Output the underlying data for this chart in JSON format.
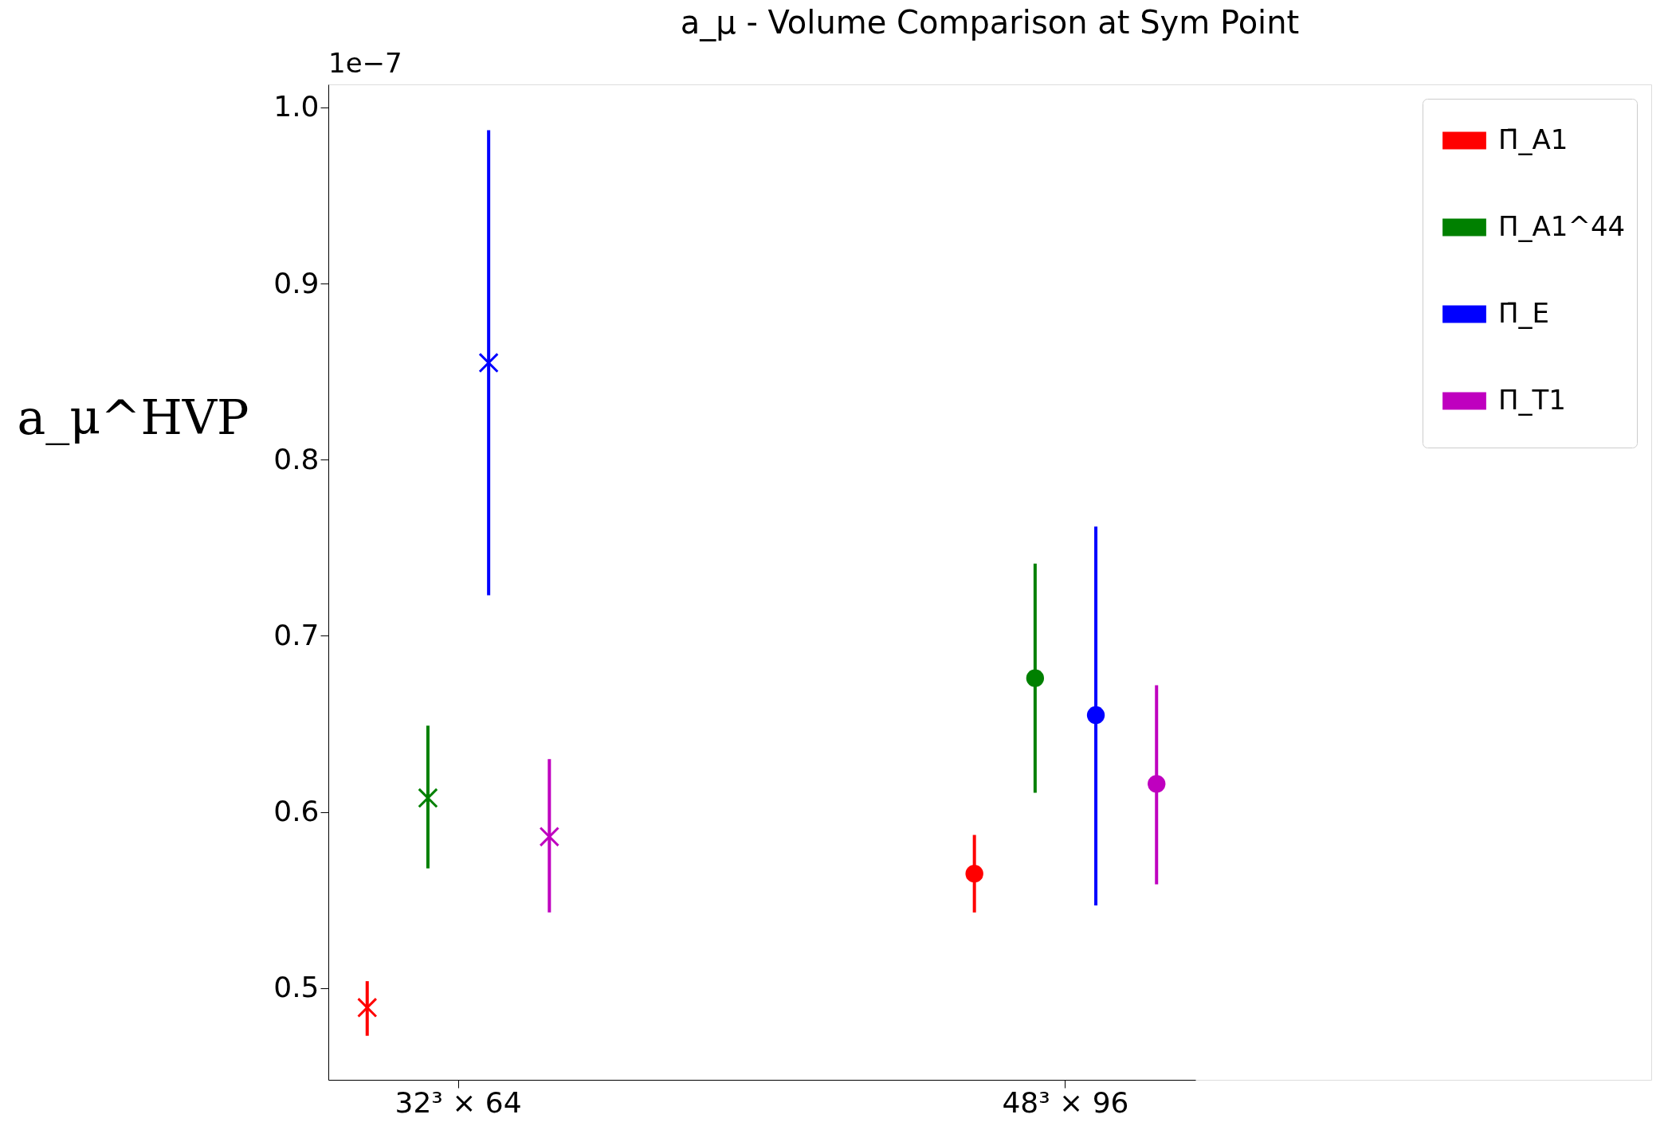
{
  "chart_data": {
    "type": "scatter",
    "title": "a_μ - Volume Comparison at Sym Point",
    "ylabel": "a_μ^HVP",
    "annotations": [
      "1e−7"
    ],
    "categories": [
      "32³ × 64",
      "48³ × 96"
    ],
    "ylim": [
      0.448,
      1.013
    ],
    "yticks": [
      {
        "value": 0.5,
        "label": "0.5"
      },
      {
        "value": 0.6,
        "label": "0.6"
      },
      {
        "value": 0.7,
        "label": "0.7"
      },
      {
        "value": 0.8,
        "label": "0.8"
      },
      {
        "value": 0.9,
        "label": "0.9"
      },
      {
        "value": 1.0,
        "label": "1.0"
      }
    ],
    "grid": false,
    "legend": "top right",
    "series": [
      {
        "name": "Π̄_A1",
        "color": "#ff0000",
        "marker": "cross",
        "x": [
          "32³ × 64"
        ],
        "values": [
          0.489
        ],
        "errors": [
          [
            0.473,
            0.504
          ]
        ]
      },
      {
        "name": "Π_A1^44",
        "color": "#008000",
        "marker": "cross",
        "x": [
          "32³ × 64"
        ],
        "values": [
          0.608
        ],
        "errors": [
          [
            0.568,
            0.649
          ]
        ]
      },
      {
        "name": "Π̄_E",
        "color": "#0000ff",
        "marker": "cross",
        "x": [
          "32³ × 64"
        ],
        "values": [
          0.855
        ],
        "errors": [
          [
            0.723,
            0.987
          ]
        ]
      },
      {
        "name": "Π_T1",
        "color": "#bf00bf",
        "marker": "cross",
        "x": [
          "32³ × 64"
        ],
        "values": [
          0.586
        ],
        "errors": [
          [
            0.543,
            0.63
          ]
        ]
      },
      {
        "color": "#ff0000",
        "marker": "circle",
        "x": [
          "48³ × 96"
        ],
        "values": [
          0.565
        ],
        "errors": [
          [
            0.543,
            0.587
          ]
        ]
      },
      {
        "color": "#008000",
        "marker": "circle",
        "x": [
          "48³ × 96"
        ],
        "values": [
          0.676
        ],
        "errors": [
          [
            0.611,
            0.741
          ]
        ]
      },
      {
        "color": "#0000ff",
        "marker": "circle",
        "x": [
          "48³ × 96"
        ],
        "values": [
          0.655
        ],
        "errors": [
          [
            0.547,
            0.762
          ]
        ]
      },
      {
        "color": "#bf00bf",
        "marker": "circle",
        "x": [
          "48³ × 96"
        ],
        "values": [
          0.616
        ],
        "errors": [
          [
            0.559,
            0.672
          ]
        ]
      }
    ]
  }
}
